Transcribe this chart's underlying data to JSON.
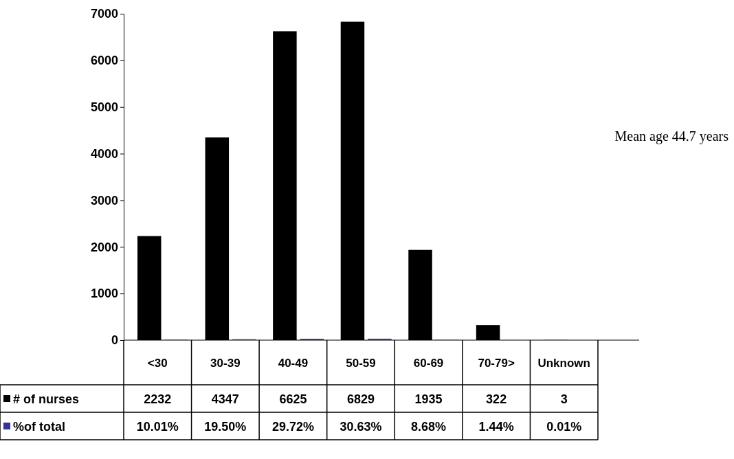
{
  "chart_data": {
    "type": "bar",
    "categories": [
      "<30",
      "30-39",
      "40-49",
      "50-59",
      "60-69",
      "70-79>",
      "Unknown"
    ],
    "series": [
      {
        "name": "# of nurses",
        "color": "#000000",
        "values": [
          2232,
          4347,
          6625,
          6829,
          1935,
          322,
          3
        ],
        "value_labels": [
          "2232",
          "4347",
          "6625",
          "6829",
          "1935",
          "322",
          "3"
        ]
      },
      {
        "name": "%of total",
        "color": "#333399",
        "values": [
          10.01,
          19.5,
          29.72,
          30.63,
          8.68,
          1.44,
          0.01
        ],
        "value_labels": [
          "10.01%",
          "19.50%",
          "29.72%",
          "30.63%",
          "8.68%",
          "1.44%",
          "0.01%"
        ]
      }
    ],
    "ylim": [
      0,
      7000
    ],
    "yticks": [
      0,
      1000,
      2000,
      3000,
      4000,
      5000,
      6000,
      7000
    ],
    "legend": "bottom left",
    "annotations": [
      "Mean age 44.7 years"
    ]
  }
}
